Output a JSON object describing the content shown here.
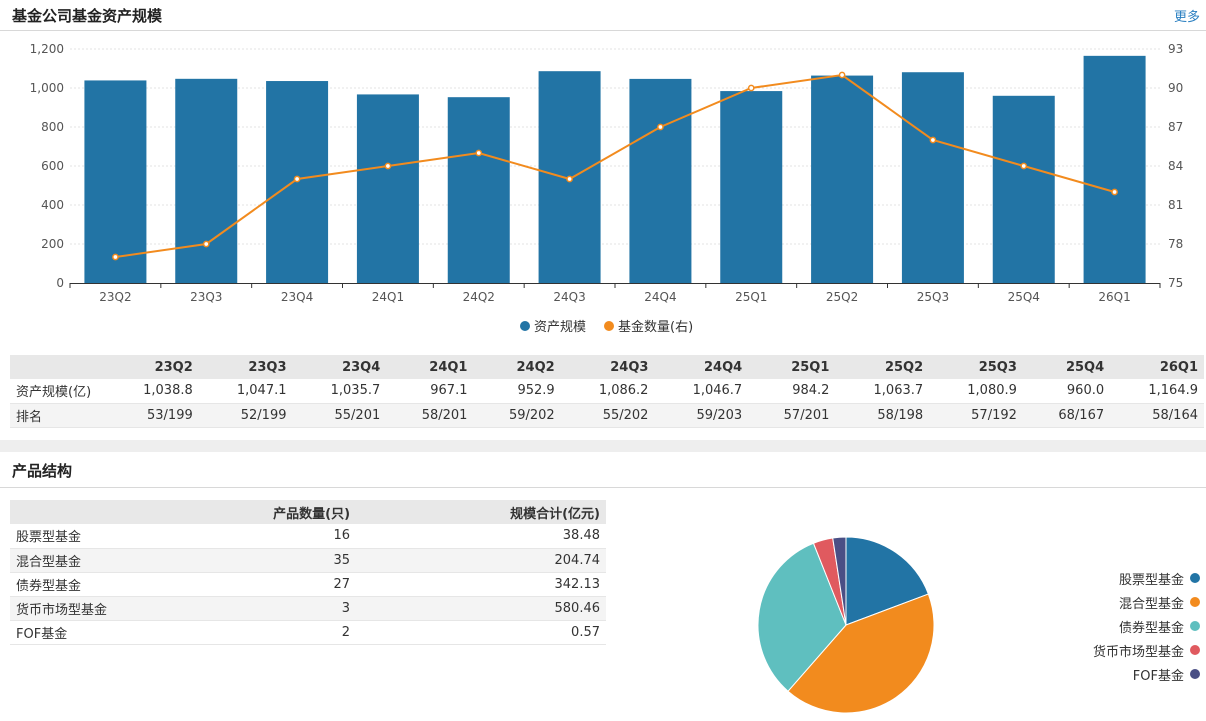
{
  "header": {
    "title": "基金公司基金资产规模",
    "more_label": "更多"
  },
  "chart_data": {
    "type": "bar",
    "categories": [
      "23Q2",
      "23Q3",
      "23Q4",
      "24Q1",
      "24Q2",
      "24Q3",
      "24Q4",
      "25Q1",
      "25Q2",
      "25Q3",
      "25Q4",
      "26Q1"
    ],
    "series": [
      {
        "name": "资产规模",
        "type": "bar",
        "axis": "left",
        "color": "#2274a5",
        "values": [
          1038.8,
          1047.1,
          1035.7,
          967.1,
          952.9,
          1086.2,
          1046.7,
          984.2,
          1063.7,
          1080.9,
          960.0,
          1164.9
        ]
      },
      {
        "name": "基金数量(右)",
        "type": "line",
        "axis": "right",
        "color": "#f28b1e",
        "values": [
          77,
          78,
          83,
          84,
          85,
          83,
          87,
          90,
          91,
          86,
          84,
          82
        ]
      }
    ],
    "y_left": {
      "ylim": [
        0,
        1200
      ],
      "ticks": [
        0,
        200,
        400,
        600,
        800,
        1000,
        1200
      ],
      "tick_labels": [
        "0",
        "200",
        "400",
        "600",
        "800",
        "1,000",
        "1,200"
      ]
    },
    "y_right": {
      "ylim": [
        75,
        93
      ],
      "ticks": [
        75,
        78,
        81,
        84,
        87,
        90,
        93
      ],
      "tick_labels": [
        "75",
        "78",
        "81",
        "84",
        "87",
        "90",
        "93"
      ]
    },
    "grid": true,
    "legend_position": "bottom-center"
  },
  "quarter_table": {
    "headers": [
      "",
      "23Q2",
      "23Q3",
      "23Q4",
      "24Q1",
      "24Q2",
      "24Q3",
      "24Q4",
      "25Q1",
      "25Q2",
      "25Q3",
      "25Q4",
      "26Q1"
    ],
    "rows": [
      {
        "label": "资产规模(亿)",
        "values": [
          "1,038.8",
          "1,047.1",
          "1,035.7",
          "967.1",
          "952.9",
          "1,086.2",
          "1,046.7",
          "984.2",
          "1,063.7",
          "1,080.9",
          "960.0",
          "1,164.9"
        ]
      },
      {
        "label": "排名",
        "values": [
          "53/199",
          "52/199",
          "55/201",
          "58/201",
          "59/202",
          "55/202",
          "59/203",
          "57/201",
          "58/198",
          "57/192",
          "68/167",
          "58/164"
        ]
      }
    ]
  },
  "product": {
    "title": "产品结构",
    "headers": [
      "",
      "产品数量(只)",
      "规模合计(亿元)"
    ],
    "rows": [
      {
        "name": "股票型基金",
        "count": "16",
        "scale": "38.48"
      },
      {
        "name": "混合型基金",
        "count": "35",
        "scale": "204.74"
      },
      {
        "name": "债券型基金",
        "count": "27",
        "scale": "342.13"
      },
      {
        "name": "货币市场型基金",
        "count": "3",
        "scale": "580.46"
      },
      {
        "name": "FOF基金",
        "count": "2",
        "scale": "0.57"
      }
    ],
    "pie": {
      "type": "pie",
      "labels": [
        "股票型基金",
        "混合型基金",
        "债券型基金",
        "货币市场型基金",
        "FOF基金"
      ],
      "values": [
        16,
        35,
        27,
        3,
        2
      ],
      "colors": [
        "#2274a5",
        "#f28b1e",
        "#5fbfbf",
        "#e05a5f",
        "#4a4f85"
      ]
    }
  }
}
